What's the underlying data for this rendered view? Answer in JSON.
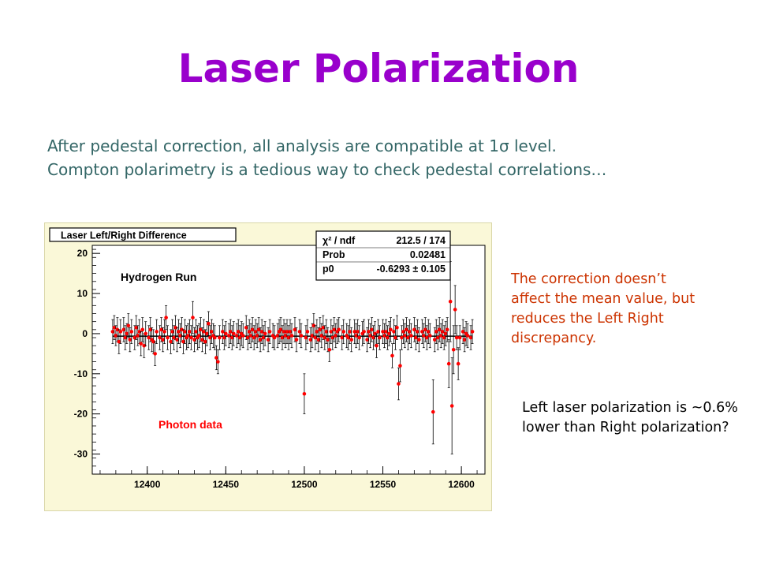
{
  "slide": {
    "title": "Laser Polarization",
    "intro_line1": "After pedestal correction, all analysis are compatible at 1σ level.",
    "intro_line2": "Compton polarimetry is a tedious way to check pedestal correlations…",
    "note1": "The correction doesn’t affect the mean value, but reduces the Left Right discrepancy.",
    "note2": "Left laser polarization is ~0.6% lower than Right polarization?"
  },
  "chart_data": {
    "type": "scatter",
    "title": "Laser Left/Right Difference",
    "annotations": [
      "Hydrogen Run",
      "Photon data"
    ],
    "xlabel": "",
    "ylabel": "",
    "xlim": [
      12365,
      12615
    ],
    "ylim": [
      -35,
      22
    ],
    "x_ticks": [
      12400,
      12450,
      12500,
      12550,
      12600
    ],
    "y_ticks": [
      20,
      10,
      0,
      -10,
      -20,
      -30
    ],
    "fit": {
      "rows": [
        {
          "label": "χ² / ndf",
          "value": "212.5 / 174"
        },
        {
          "label": "Prob",
          "value": "0.02481"
        },
        {
          "label": "p0",
          "value": "-0.6293 ± 0.105"
        }
      ],
      "p0": -0.6293
    },
    "points": [
      {
        "x": 12378,
        "y": 0.5,
        "err": 3
      },
      {
        "x": 12379,
        "y": 1.5,
        "err": 3
      },
      {
        "x": 12380,
        "y": -0.5,
        "err": 2.5
      },
      {
        "x": 12381,
        "y": 1,
        "err": 3
      },
      {
        "x": 12382,
        "y": -2,
        "err": 3
      },
      {
        "x": 12383,
        "y": 0.5,
        "err": 3
      },
      {
        "x": 12385,
        "y": 1,
        "err": 3
      },
      {
        "x": 12386,
        "y": -1,
        "err": 3
      },
      {
        "x": 12387,
        "y": 0,
        "err": 2.5
      },
      {
        "x": 12388,
        "y": 2,
        "err": 3
      },
      {
        "x": 12389,
        "y": -1.5,
        "err": 3
      },
      {
        "x": 12390,
        "y": 0.5,
        "err": 3
      },
      {
        "x": 12392,
        "y": -1,
        "err": 3
      },
      {
        "x": 12393,
        "y": 1.5,
        "err": 3
      },
      {
        "x": 12394,
        "y": -0.5,
        "err": 2.5
      },
      {
        "x": 12395,
        "y": 0.5,
        "err": 3
      },
      {
        "x": 12396,
        "y": -2.5,
        "err": 3
      },
      {
        "x": 12397,
        "y": 1,
        "err": 3
      },
      {
        "x": 12398,
        "y": -3,
        "err": 3
      },
      {
        "x": 12399,
        "y": 0,
        "err": 3
      },
      {
        "x": 12401,
        "y": -1,
        "err": 3
      },
      {
        "x": 12402,
        "y": 1,
        "err": 3
      },
      {
        "x": 12403,
        "y": -1.5,
        "err": 3
      },
      {
        "x": 12404,
        "y": -2,
        "err": 3
      },
      {
        "x": 12405,
        "y": -5,
        "err": 3
      },
      {
        "x": 12406,
        "y": 0.5,
        "err": 3
      },
      {
        "x": 12408,
        "y": -1,
        "err": 3
      },
      {
        "x": 12409,
        "y": 1,
        "err": 3
      },
      {
        "x": 12410,
        "y": -1.5,
        "err": 3
      },
      {
        "x": 12411,
        "y": 0.5,
        "err": 3
      },
      {
        "x": 12412,
        "y": 4,
        "err": 3
      },
      {
        "x": 12413,
        "y": -1,
        "err": 3
      },
      {
        "x": 12415,
        "y": -2,
        "err": 3
      },
      {
        "x": 12416,
        "y": 0.5,
        "err": 3
      },
      {
        "x": 12417,
        "y": -1,
        "err": 3
      },
      {
        "x": 12418,
        "y": 1.5,
        "err": 3
      },
      {
        "x": 12419,
        "y": -1.5,
        "err": 3
      },
      {
        "x": 12420,
        "y": 0.5,
        "err": 3
      },
      {
        "x": 12421,
        "y": -0.5,
        "err": 3
      },
      {
        "x": 12422,
        "y": 1,
        "err": 3
      },
      {
        "x": 12423,
        "y": -2,
        "err": 3
      },
      {
        "x": 12424,
        "y": 0.5,
        "err": 3
      },
      {
        "x": 12425,
        "y": -1,
        "err": 3
      },
      {
        "x": 12426,
        "y": -0.5,
        "err": 3
      },
      {
        "x": 12427,
        "y": 0.5,
        "err": 3
      },
      {
        "x": 12428,
        "y": -1,
        "err": 3
      },
      {
        "x": 12429,
        "y": 4,
        "err": 4
      },
      {
        "x": 12430,
        "y": -1.5,
        "err": 3
      },
      {
        "x": 12431,
        "y": 0.5,
        "err": 3
      },
      {
        "x": 12432,
        "y": -1,
        "err": 3
      },
      {
        "x": 12433,
        "y": -0.5,
        "err": 3
      },
      {
        "x": 12434,
        "y": 1,
        "err": 3
      },
      {
        "x": 12435,
        "y": -1.5,
        "err": 3
      },
      {
        "x": 12436,
        "y": 0.5,
        "err": 3
      },
      {
        "x": 12437,
        "y": -2,
        "err": 3
      },
      {
        "x": 12438,
        "y": 0,
        "err": 3
      },
      {
        "x": 12439,
        "y": 2.5,
        "err": 3
      },
      {
        "x": 12440,
        "y": -1,
        "err": 3
      },
      {
        "x": 12441,
        "y": 0.5,
        "err": 3
      },
      {
        "x": 12442,
        "y": -0.5,
        "err": 3
      },
      {
        "x": 12443,
        "y": -1,
        "err": 3
      },
      {
        "x": 12444,
        "y": -6,
        "err": 3
      },
      {
        "x": 12445,
        "y": -7,
        "err": 3
      },
      {
        "x": 12446,
        "y": -1,
        "err": 3
      },
      {
        "x": 12448,
        "y": 0.5,
        "err": 3
      },
      {
        "x": 12449,
        "y": -1,
        "err": 3
      },
      {
        "x": 12450,
        "y": 0,
        "err": 3
      },
      {
        "x": 12452,
        "y": -0.5,
        "err": 3
      },
      {
        "x": 12453,
        "y": 0.5,
        "err": 3
      },
      {
        "x": 12454,
        "y": -1,
        "err": 3
      },
      {
        "x": 12455,
        "y": 0,
        "err": 3
      },
      {
        "x": 12457,
        "y": -0.5,
        "err": 3
      },
      {
        "x": 12458,
        "y": 0.5,
        "err": 3
      },
      {
        "x": 12459,
        "y": -1,
        "err": 3
      },
      {
        "x": 12460,
        "y": 0,
        "err": 3
      },
      {
        "x": 12461,
        "y": -0.5,
        "err": 3
      },
      {
        "x": 12463,
        "y": 1.5,
        "err": 3
      },
      {
        "x": 12464,
        "y": -1,
        "err": 3
      },
      {
        "x": 12465,
        "y": 0.5,
        "err": 3
      },
      {
        "x": 12466,
        "y": -0.5,
        "err": 3
      },
      {
        "x": 12467,
        "y": 1,
        "err": 3
      },
      {
        "x": 12468,
        "y": -1,
        "err": 3
      },
      {
        "x": 12469,
        "y": 0.5,
        "err": 3
      },
      {
        "x": 12470,
        "y": -0.5,
        "err": 3
      },
      {
        "x": 12471,
        "y": 1,
        "err": 3
      },
      {
        "x": 12472,
        "y": -1.5,
        "err": 3
      },
      {
        "x": 12473,
        "y": 0.5,
        "err": 3
      },
      {
        "x": 12474,
        "y": -1,
        "err": 3
      },
      {
        "x": 12475,
        "y": 0,
        "err": 3
      },
      {
        "x": 12477,
        "y": -1.5,
        "err": 3
      },
      {
        "x": 12478,
        "y": 0.5,
        "err": 3
      },
      {
        "x": 12480,
        "y": -0.5,
        "err": 3
      },
      {
        "x": 12481,
        "y": -1,
        "err": 3
      },
      {
        "x": 12483,
        "y": -0.5,
        "err": 3
      },
      {
        "x": 12484,
        "y": 0.5,
        "err": 3
      },
      {
        "x": 12485,
        "y": 1,
        "err": 3
      },
      {
        "x": 12486,
        "y": -1,
        "err": 3
      },
      {
        "x": 12487,
        "y": 0.5,
        "err": 3
      },
      {
        "x": 12488,
        "y": -0.5,
        "err": 3
      },
      {
        "x": 12489,
        "y": 0.5,
        "err": 3
      },
      {
        "x": 12490,
        "y": -1,
        "err": 3
      },
      {
        "x": 12491,
        "y": 0.5,
        "err": 3
      },
      {
        "x": 12492,
        "y": -0.5,
        "err": 3
      },
      {
        "x": 12494,
        "y": 1,
        "err": 3
      },
      {
        "x": 12495,
        "y": -1.5,
        "err": 3
      },
      {
        "x": 12497,
        "y": 0.5,
        "err": 3
      },
      {
        "x": 12498,
        "y": -0.5,
        "err": 3
      },
      {
        "x": 12500,
        "y": -15,
        "err": 5
      },
      {
        "x": 12501,
        "y": -1,
        "err": 3
      },
      {
        "x": 12502,
        "y": 0.5,
        "err": 3
      },
      {
        "x": 12504,
        "y": -1.5,
        "err": 3
      },
      {
        "x": 12505,
        "y": -0.5,
        "err": 3
      },
      {
        "x": 12506,
        "y": 2,
        "err": 3
      },
      {
        "x": 12507,
        "y": -1,
        "err": 3
      },
      {
        "x": 12508,
        "y": 0.5,
        "err": 3
      },
      {
        "x": 12509,
        "y": -1.5,
        "err": 3
      },
      {
        "x": 12510,
        "y": 1,
        "err": 3
      },
      {
        "x": 12511,
        "y": -0.5,
        "err": 3
      },
      {
        "x": 12512,
        "y": 1.5,
        "err": 3
      },
      {
        "x": 12513,
        "y": -1,
        "err": 3
      },
      {
        "x": 12514,
        "y": 0.5,
        "err": 3
      },
      {
        "x": 12515,
        "y": -1.5,
        "err": 3
      },
      {
        "x": 12516,
        "y": -4,
        "err": 3
      },
      {
        "x": 12517,
        "y": 0.5,
        "err": 3
      },
      {
        "x": 12518,
        "y": -1,
        "err": 3
      },
      {
        "x": 12519,
        "y": 1,
        "err": 3
      },
      {
        "x": 12520,
        "y": -0.5,
        "err": 3
      },
      {
        "x": 12521,
        "y": 0.5,
        "err": 3
      },
      {
        "x": 12522,
        "y": 1,
        "err": 3
      },
      {
        "x": 12524,
        "y": -1,
        "err": 3
      },
      {
        "x": 12525,
        "y": 0.5,
        "err": 3
      },
      {
        "x": 12527,
        "y": -0.5,
        "err": 3
      },
      {
        "x": 12528,
        "y": -1,
        "err": 3
      },
      {
        "x": 12529,
        "y": 0.5,
        "err": 3
      },
      {
        "x": 12530,
        "y": -1.5,
        "err": 3
      },
      {
        "x": 12532,
        "y": 0.5,
        "err": 3
      },
      {
        "x": 12533,
        "y": -0.5,
        "err": 3
      },
      {
        "x": 12534,
        "y": 0.5,
        "err": 3
      },
      {
        "x": 12535,
        "y": -1,
        "err": 3
      },
      {
        "x": 12537,
        "y": 0,
        "err": 3
      },
      {
        "x": 12538,
        "y": 0.5,
        "err": 3
      },
      {
        "x": 12540,
        "y": -1.5,
        "err": 3
      },
      {
        "x": 12541,
        "y": 0.5,
        "err": 3
      },
      {
        "x": 12542,
        "y": -0.5,
        "err": 3
      },
      {
        "x": 12543,
        "y": 1,
        "err": 3
      },
      {
        "x": 12544,
        "y": -1,
        "err": 3
      },
      {
        "x": 12545,
        "y": 0,
        "err": 3
      },
      {
        "x": 12546,
        "y": -3,
        "err": 3
      },
      {
        "x": 12547,
        "y": 0.5,
        "err": 3
      },
      {
        "x": 12548,
        "y": -1,
        "err": 3
      },
      {
        "x": 12550,
        "y": 0.5,
        "err": 3
      },
      {
        "x": 12551,
        "y": -0.5,
        "err": 3
      },
      {
        "x": 12552,
        "y": 0.5,
        "err": 3
      },
      {
        "x": 12553,
        "y": -1,
        "err": 3
      },
      {
        "x": 12554,
        "y": 0,
        "err": 3
      },
      {
        "x": 12555,
        "y": 1,
        "err": 3
      },
      {
        "x": 12556,
        "y": -5.5,
        "err": 3
      },
      {
        "x": 12557,
        "y": 0.5,
        "err": 3
      },
      {
        "x": 12558,
        "y": -1,
        "err": 3
      },
      {
        "x": 12559,
        "y": 1.5,
        "err": 3
      },
      {
        "x": 12560,
        "y": -12.5,
        "err": 4
      },
      {
        "x": 12561,
        "y": -8,
        "err": 4
      },
      {
        "x": 12562,
        "y": -1,
        "err": 3
      },
      {
        "x": 12563,
        "y": 0.5,
        "err": 3
      },
      {
        "x": 12564,
        "y": -0.5,
        "err": 3
      },
      {
        "x": 12565,
        "y": 1,
        "err": 3
      },
      {
        "x": 12566,
        "y": -1,
        "err": 3
      },
      {
        "x": 12567,
        "y": 0.5,
        "err": 3
      },
      {
        "x": 12568,
        "y": -0.5,
        "err": 3
      },
      {
        "x": 12570,
        "y": 1,
        "err": 3
      },
      {
        "x": 12571,
        "y": -1,
        "err": 3
      },
      {
        "x": 12572,
        "y": 0.5,
        "err": 3
      },
      {
        "x": 12573,
        "y": -1.5,
        "err": 3
      },
      {
        "x": 12575,
        "y": 0.5,
        "err": 3
      },
      {
        "x": 12576,
        "y": -0.5,
        "err": 3
      },
      {
        "x": 12577,
        "y": 1,
        "err": 3
      },
      {
        "x": 12578,
        "y": -1,
        "err": 3
      },
      {
        "x": 12579,
        "y": 0.5,
        "err": 3
      },
      {
        "x": 12580,
        "y": -0.5,
        "err": 3
      },
      {
        "x": 12582,
        "y": -19.5,
        "err": 8
      },
      {
        "x": 12583,
        "y": -1.5,
        "err": 3
      },
      {
        "x": 12584,
        "y": 0.5,
        "err": 3
      },
      {
        "x": 12585,
        "y": -1,
        "err": 3
      },
      {
        "x": 12586,
        "y": 1,
        "err": 3
      },
      {
        "x": 12587,
        "y": -0.5,
        "err": 3
      },
      {
        "x": 12588,
        "y": 0.5,
        "err": 3
      },
      {
        "x": 12589,
        "y": -1,
        "err": 3
      },
      {
        "x": 12590,
        "y": 0,
        "err": 3
      },
      {
        "x": 12591,
        "y": 1,
        "err": 3
      },
      {
        "x": 12592,
        "y": -7.5,
        "err": 6
      },
      {
        "x": 12593,
        "y": 8,
        "err": 10
      },
      {
        "x": 12594,
        "y": -18,
        "err": 12
      },
      {
        "x": 12595,
        "y": -4,
        "err": 6
      },
      {
        "x": 12596,
        "y": 6,
        "err": 6
      },
      {
        "x": 12597,
        "y": -1,
        "err": 3
      },
      {
        "x": 12598,
        "y": -7.5,
        "err": 4
      },
      {
        "x": 12599,
        "y": -1,
        "err": 3
      },
      {
        "x": 12601,
        "y": 0.5,
        "err": 3
      },
      {
        "x": 12602,
        "y": -1.5,
        "err": 3
      },
      {
        "x": 12603,
        "y": 0,
        "err": 3
      },
      {
        "x": 12604,
        "y": -0.5,
        "err": 3
      },
      {
        "x": 12606,
        "y": -1,
        "err": 3
      },
      {
        "x": 12607,
        "y": 0.5,
        "err": 3
      }
    ]
  }
}
